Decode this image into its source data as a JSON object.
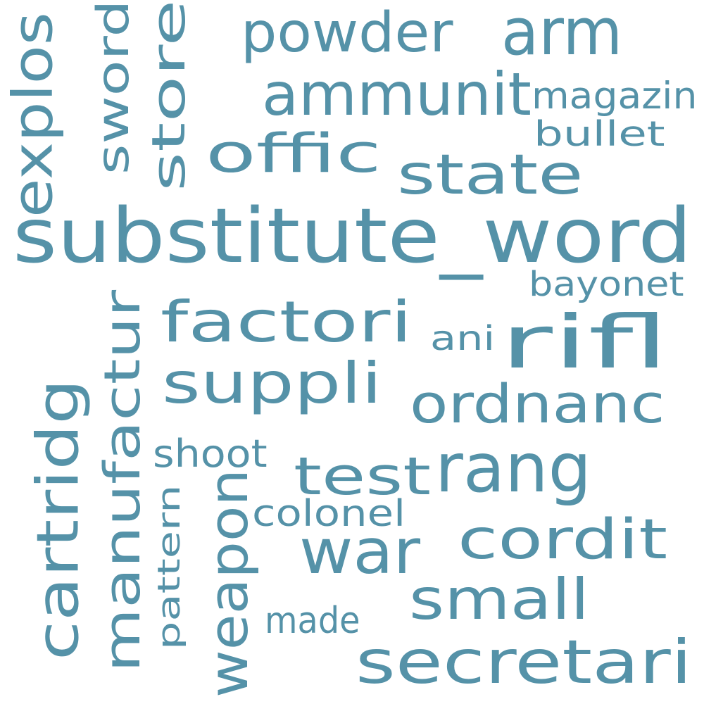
{
  "color": "#5592a8",
  "words": {
    "substitute_word": "substitute_word",
    "powder": "powder",
    "arm": "arm",
    "ammunit": "ammunit",
    "magazin": "magazin",
    "bullet": "bullet",
    "offic": "offic",
    "state": "state",
    "store": "store",
    "sword": "sword",
    "explos": "explos",
    "bayonet": "bayonet",
    "factori": "factori",
    "ani": "ani",
    "rifl": "rifl",
    "suppli": "suppli",
    "ordnanc": "ordnanc",
    "manufactur": "manufactur",
    "cartridg": "cartridg",
    "shoot": "shoot",
    "test": "test",
    "rang": "rang",
    "pattern": "pattern",
    "weapon": "weapon",
    "colonel": "colonel",
    "war": "war",
    "cordit": "cordit",
    "small": "small",
    "made": "made",
    "secretari": "secretari"
  }
}
